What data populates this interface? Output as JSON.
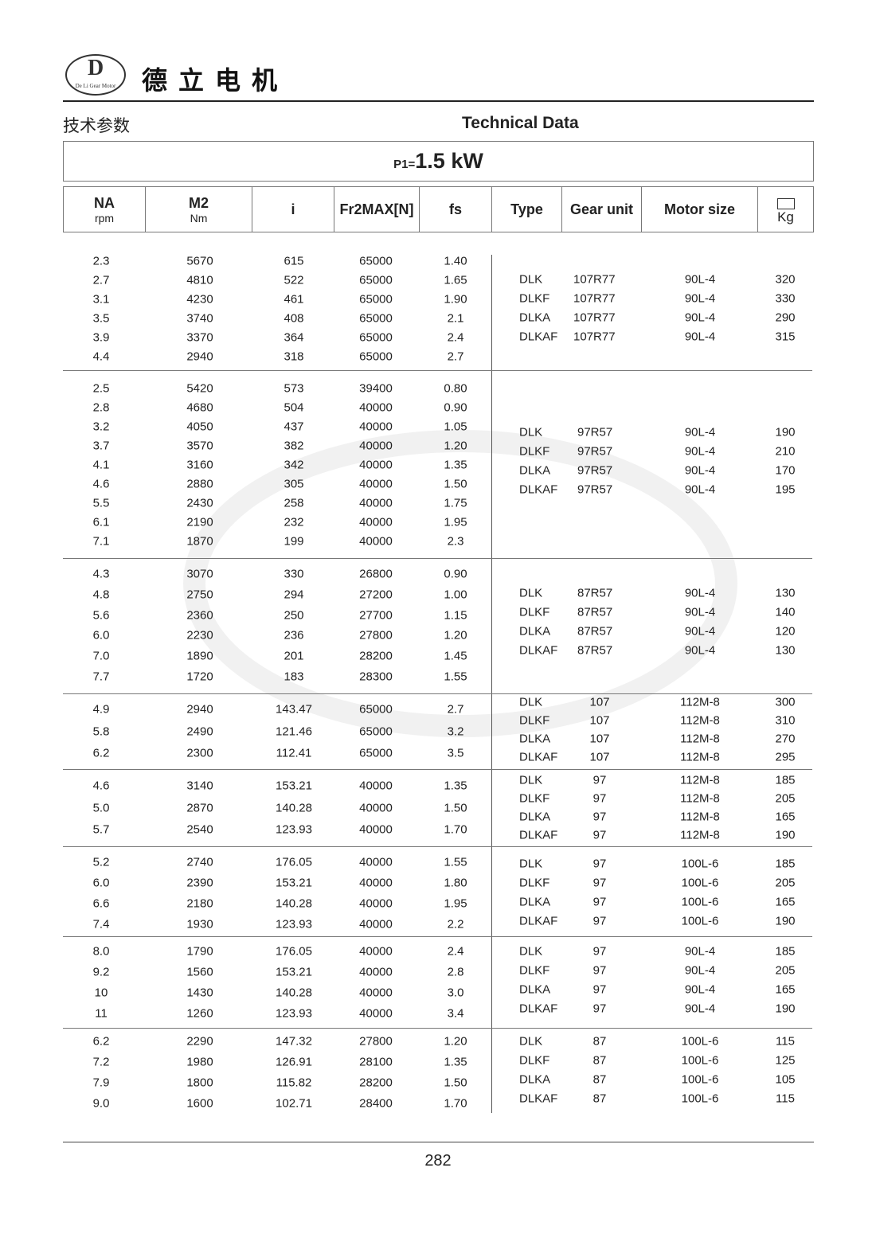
{
  "header": {
    "brand_logo_text": "De Li Gear Motor",
    "brand_name": "德立电机",
    "title_cn": "技术参数",
    "title_en": "Technical Data"
  },
  "power": {
    "label": "P1=",
    "value": "1.5 kW"
  },
  "columns": [
    {
      "main": "NA",
      "sub": "rpm"
    },
    {
      "main": "M2",
      "sub": "Nm"
    },
    {
      "main": "i",
      "sub": ""
    },
    {
      "main": "Fr2MAX[N]",
      "sub": ""
    },
    {
      "main": "fs",
      "sub": ""
    },
    {
      "main": "Type",
      "sub": ""
    },
    {
      "main": "Gear unit",
      "sub": ""
    },
    {
      "main": "Motor size",
      "sub": ""
    },
    {
      "main": "",
      "sub": "Kg"
    }
  ],
  "groups": [
    {
      "rows": [
        [
          "2.3",
          "5670",
          "615",
          "65000",
          "1.40"
        ],
        [
          "2.7",
          "4810",
          "522",
          "65000",
          "1.65"
        ],
        [
          "3.1",
          "4230",
          "461",
          "65000",
          "1.90"
        ],
        [
          "3.5",
          "3740",
          "408",
          "65000",
          "2.1"
        ],
        [
          "3.9",
          "3370",
          "364",
          "65000",
          "2.4"
        ],
        [
          "4.4",
          "2940",
          "318",
          "65000",
          "2.7"
        ]
      ],
      "types": [
        [
          "DLK",
          "107R77",
          "90L-4",
          "320"
        ],
        [
          "DLKF",
          "107R77",
          "90L-4",
          "330"
        ],
        [
          "DLKA",
          "107R77",
          "90L-4",
          "290"
        ],
        [
          "DLKAF",
          "107R77",
          "90L-4",
          "315"
        ]
      ]
    },
    {
      "rows": [
        [
          "2.5",
          "5420",
          "573",
          "39400",
          "0.80"
        ],
        [
          "2.8",
          "4680",
          "504",
          "40000",
          "0.90"
        ],
        [
          "3.2",
          "4050",
          "437",
          "40000",
          "1.05"
        ],
        [
          "3.7",
          "3570",
          "382",
          "40000",
          "1.20"
        ],
        [
          "4.1",
          "3160",
          "342",
          "40000",
          "1.35"
        ],
        [
          "4.6",
          "2880",
          "305",
          "40000",
          "1.50"
        ],
        [
          "5.5",
          "2430",
          "258",
          "40000",
          "1.75"
        ],
        [
          "6.1",
          "2190",
          "232",
          "40000",
          "1.95"
        ],
        [
          "7.1",
          "1870",
          "199",
          "40000",
          "2.3"
        ]
      ],
      "types": [
        [
          "DLK",
          "97R57",
          "90L-4",
          "190"
        ],
        [
          "DLKF",
          "97R57",
          "90L-4",
          "210"
        ],
        [
          "DLKA",
          "97R57",
          "90L-4",
          "170"
        ],
        [
          "DLKAF",
          "97R57",
          "90L-4",
          "195"
        ]
      ]
    },
    {
      "rows": [
        [
          "4.3",
          "3070",
          "330",
          "26800",
          "0.90"
        ],
        [
          "4.8",
          "2750",
          "294",
          "27200",
          "1.00"
        ],
        [
          "5.6",
          "2360",
          "250",
          "27700",
          "1.15"
        ],
        [
          "6.0",
          "2230",
          "236",
          "27800",
          "1.20"
        ],
        [
          "7.0",
          "1890",
          "201",
          "28200",
          "1.45"
        ],
        [
          "7.7",
          "1720",
          "183",
          "28300",
          "1.55"
        ]
      ],
      "types": [
        [
          "DLK",
          "87R57",
          "90L-4",
          "130"
        ],
        [
          "DLKF",
          "87R57",
          "90L-4",
          "140"
        ],
        [
          "DLKA",
          "87R57",
          "90L-4",
          "120"
        ],
        [
          "DLKAF",
          "87R57",
          "90L-4",
          "130"
        ]
      ]
    },
    {
      "rows": [
        [
          "4.9",
          "2940",
          "143.47",
          "65000",
          "2.7"
        ],
        [
          "5.8",
          "2490",
          "121.46",
          "65000",
          "3.2"
        ],
        [
          "6.2",
          "2300",
          "112.41",
          "65000",
          "3.5"
        ]
      ],
      "types": [
        [
          "DLK",
          "107",
          "112M-8",
          "300"
        ],
        [
          "DLKF",
          "107",
          "112M-8",
          "310"
        ],
        [
          "DLKA",
          "107",
          "112M-8",
          "270"
        ],
        [
          "DLKAF",
          "107",
          "112M-8",
          "295"
        ]
      ]
    },
    {
      "rows": [
        [
          "4.6",
          "3140",
          "153.21",
          "40000",
          "1.35"
        ],
        [
          "5.0",
          "2870",
          "140.28",
          "40000",
          "1.50"
        ],
        [
          "5.7",
          "2540",
          "123.93",
          "40000",
          "1.70"
        ]
      ],
      "types": [
        [
          "DLK",
          "97",
          "112M-8",
          "185"
        ],
        [
          "DLKF",
          "97",
          "112M-8",
          "205"
        ],
        [
          "DLKA",
          "97",
          "112M-8",
          "165"
        ],
        [
          "DLKAF",
          "97",
          "112M-8",
          "190"
        ]
      ]
    },
    {
      "rows": [
        [
          "5.2",
          "2740",
          "176.05",
          "40000",
          "1.55"
        ],
        [
          "6.0",
          "2390",
          "153.21",
          "40000",
          "1.80"
        ],
        [
          "6.6",
          "2180",
          "140.28",
          "40000",
          "1.95"
        ],
        [
          "7.4",
          "1930",
          "123.93",
          "40000",
          "2.2"
        ]
      ],
      "types": [
        [
          "DLK",
          "97",
          "100L-6",
          "185"
        ],
        [
          "DLKF",
          "97",
          "100L-6",
          "205"
        ],
        [
          "DLKA",
          "97",
          "100L-6",
          "165"
        ],
        [
          "DLKAF",
          "97",
          "100L-6",
          "190"
        ]
      ]
    },
    {
      "rows": [
        [
          "8.0",
          "1790",
          "176.05",
          "40000",
          "2.4"
        ],
        [
          "9.2",
          "1560",
          "153.21",
          "40000",
          "2.8"
        ],
        [
          "10",
          "1430",
          "140.28",
          "40000",
          "3.0"
        ],
        [
          "11",
          "1260",
          "123.93",
          "40000",
          "3.4"
        ]
      ],
      "types": [
        [
          "DLK",
          "97",
          "90L-4",
          "185"
        ],
        [
          "DLKF",
          "97",
          "90L-4",
          "205"
        ],
        [
          "DLKA",
          "97",
          "90L-4",
          "165"
        ],
        [
          "DLKAF",
          "97",
          "90L-4",
          "190"
        ]
      ]
    },
    {
      "rows": [
        [
          "6.2",
          "2290",
          "147.32",
          "27800",
          "1.20"
        ],
        [
          "7.2",
          "1980",
          "126.91",
          "28100",
          "1.35"
        ],
        [
          "7.9",
          "1800",
          "115.82",
          "28200",
          "1.50"
        ],
        [
          "9.0",
          "1600",
          "102.71",
          "28400",
          "1.70"
        ]
      ],
      "types": [
        [
          "DLK",
          "87",
          "100L-6",
          "115"
        ],
        [
          "DLKF",
          "87",
          "100L-6",
          "125"
        ],
        [
          "DLKA",
          "87",
          "100L-6",
          "105"
        ],
        [
          "DLKAF",
          "87",
          "100L-6",
          "115"
        ]
      ]
    }
  ],
  "footer": {
    "page_number": "282"
  }
}
